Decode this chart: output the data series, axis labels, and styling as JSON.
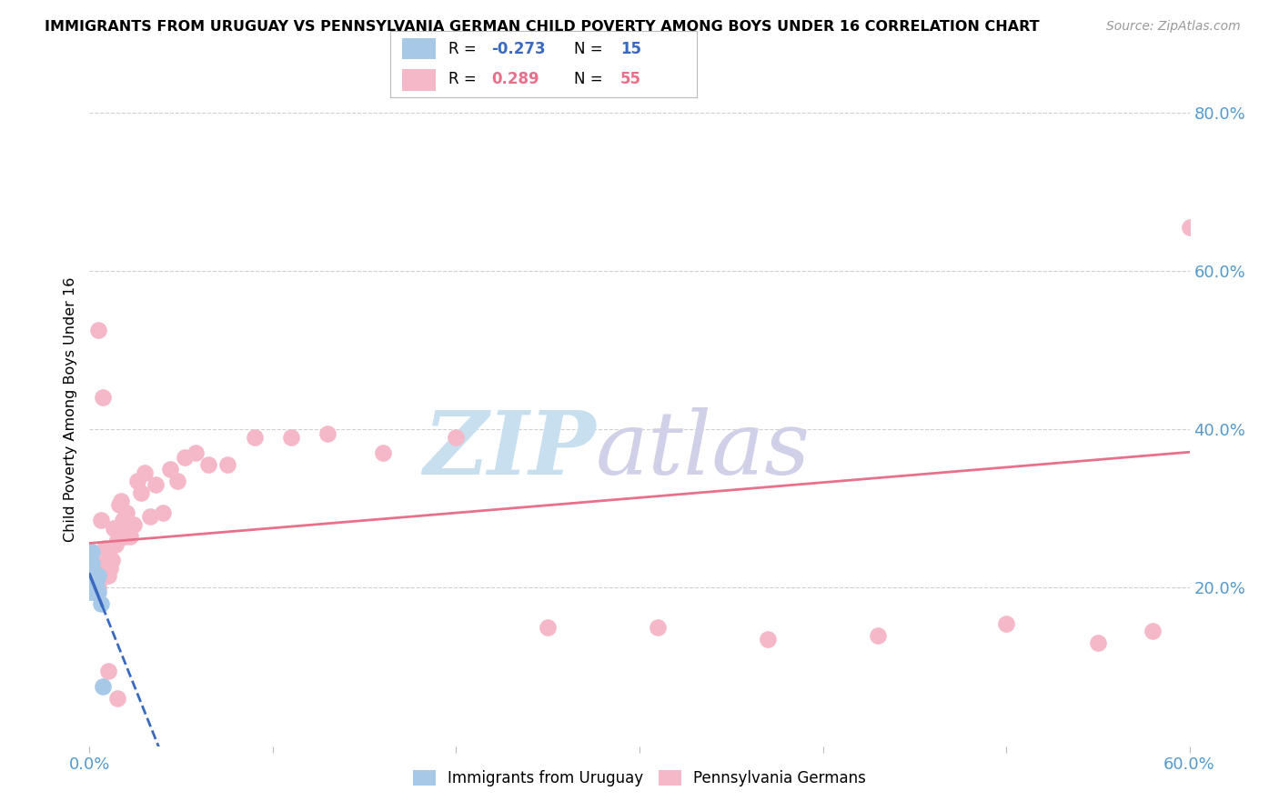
{
  "title": "IMMIGRANTS FROM URUGUAY VS PENNSYLVANIA GERMAN CHILD POVERTY AMONG BOYS UNDER 16 CORRELATION CHART",
  "source": "Source: ZipAtlas.com",
  "ylabel": "Child Poverty Among Boys Under 16",
  "xlim": [
    0.0,
    0.6
  ],
  "ylim": [
    0.0,
    0.85
  ],
  "yticks": [
    0.0,
    0.2,
    0.4,
    0.6,
    0.8
  ],
  "xticks": [
    0.0,
    0.1,
    0.2,
    0.3,
    0.4,
    0.5,
    0.6
  ],
  "xtick_labels": [
    "0.0%",
    "",
    "",
    "",
    "",
    "",
    "60.0%"
  ],
  "ytick_labels": [
    "",
    "20.0%",
    "40.0%",
    "60.0%",
    "80.0%"
  ],
  "uruguay_R": -0.273,
  "uruguay_N": 15,
  "pagerman_R": 0.289,
  "pagerman_N": 55,
  "legend_label_1": "Immigrants from Uruguay",
  "legend_label_2": "Pennsylvania Germans",
  "uruguay_color": "#a8c8e8",
  "pagerman_color": "#f5b8c8",
  "uruguay_line_color": "#3a6abf",
  "pagerman_line_color": "#e8708a",
  "background_color": "#ffffff",
  "grid_color": "#d0d0d0",
  "uruguay_x": [
    0.001,
    0.0015,
    0.0015,
    0.002,
    0.002,
    0.0025,
    0.003,
    0.003,
    0.003,
    0.004,
    0.004,
    0.005,
    0.005,
    0.006,
    0.007
  ],
  "uruguay_y": [
    0.195,
    0.245,
    0.23,
    0.205,
    0.195,
    0.205,
    0.215,
    0.205,
    0.195,
    0.21,
    0.2,
    0.215,
    0.195,
    0.18,
    0.075
  ],
  "pagerman_x": [
    0.001,
    0.002,
    0.003,
    0.003,
    0.004,
    0.004,
    0.005,
    0.005,
    0.006,
    0.006,
    0.007,
    0.008,
    0.009,
    0.01,
    0.011,
    0.012,
    0.013,
    0.014,
    0.015,
    0.016,
    0.017,
    0.018,
    0.019,
    0.02,
    0.022,
    0.024,
    0.026,
    0.028,
    0.03,
    0.033,
    0.036,
    0.04,
    0.044,
    0.048,
    0.052,
    0.058,
    0.065,
    0.075,
    0.09,
    0.11,
    0.13,
    0.16,
    0.2,
    0.25,
    0.31,
    0.37,
    0.43,
    0.5,
    0.55,
    0.58,
    0.6,
    0.005,
    0.007,
    0.01,
    0.015
  ],
  "pagerman_y": [
    0.21,
    0.2,
    0.215,
    0.195,
    0.215,
    0.195,
    0.22,
    0.2,
    0.215,
    0.285,
    0.23,
    0.25,
    0.215,
    0.215,
    0.225,
    0.235,
    0.275,
    0.255,
    0.26,
    0.305,
    0.31,
    0.285,
    0.265,
    0.295,
    0.265,
    0.28,
    0.335,
    0.32,
    0.345,
    0.29,
    0.33,
    0.295,
    0.35,
    0.335,
    0.365,
    0.37,
    0.355,
    0.355,
    0.39,
    0.39,
    0.395,
    0.37,
    0.39,
    0.15,
    0.15,
    0.135,
    0.14,
    0.155,
    0.13,
    0.145,
    0.655,
    0.525,
    0.44,
    0.095,
    0.06
  ]
}
